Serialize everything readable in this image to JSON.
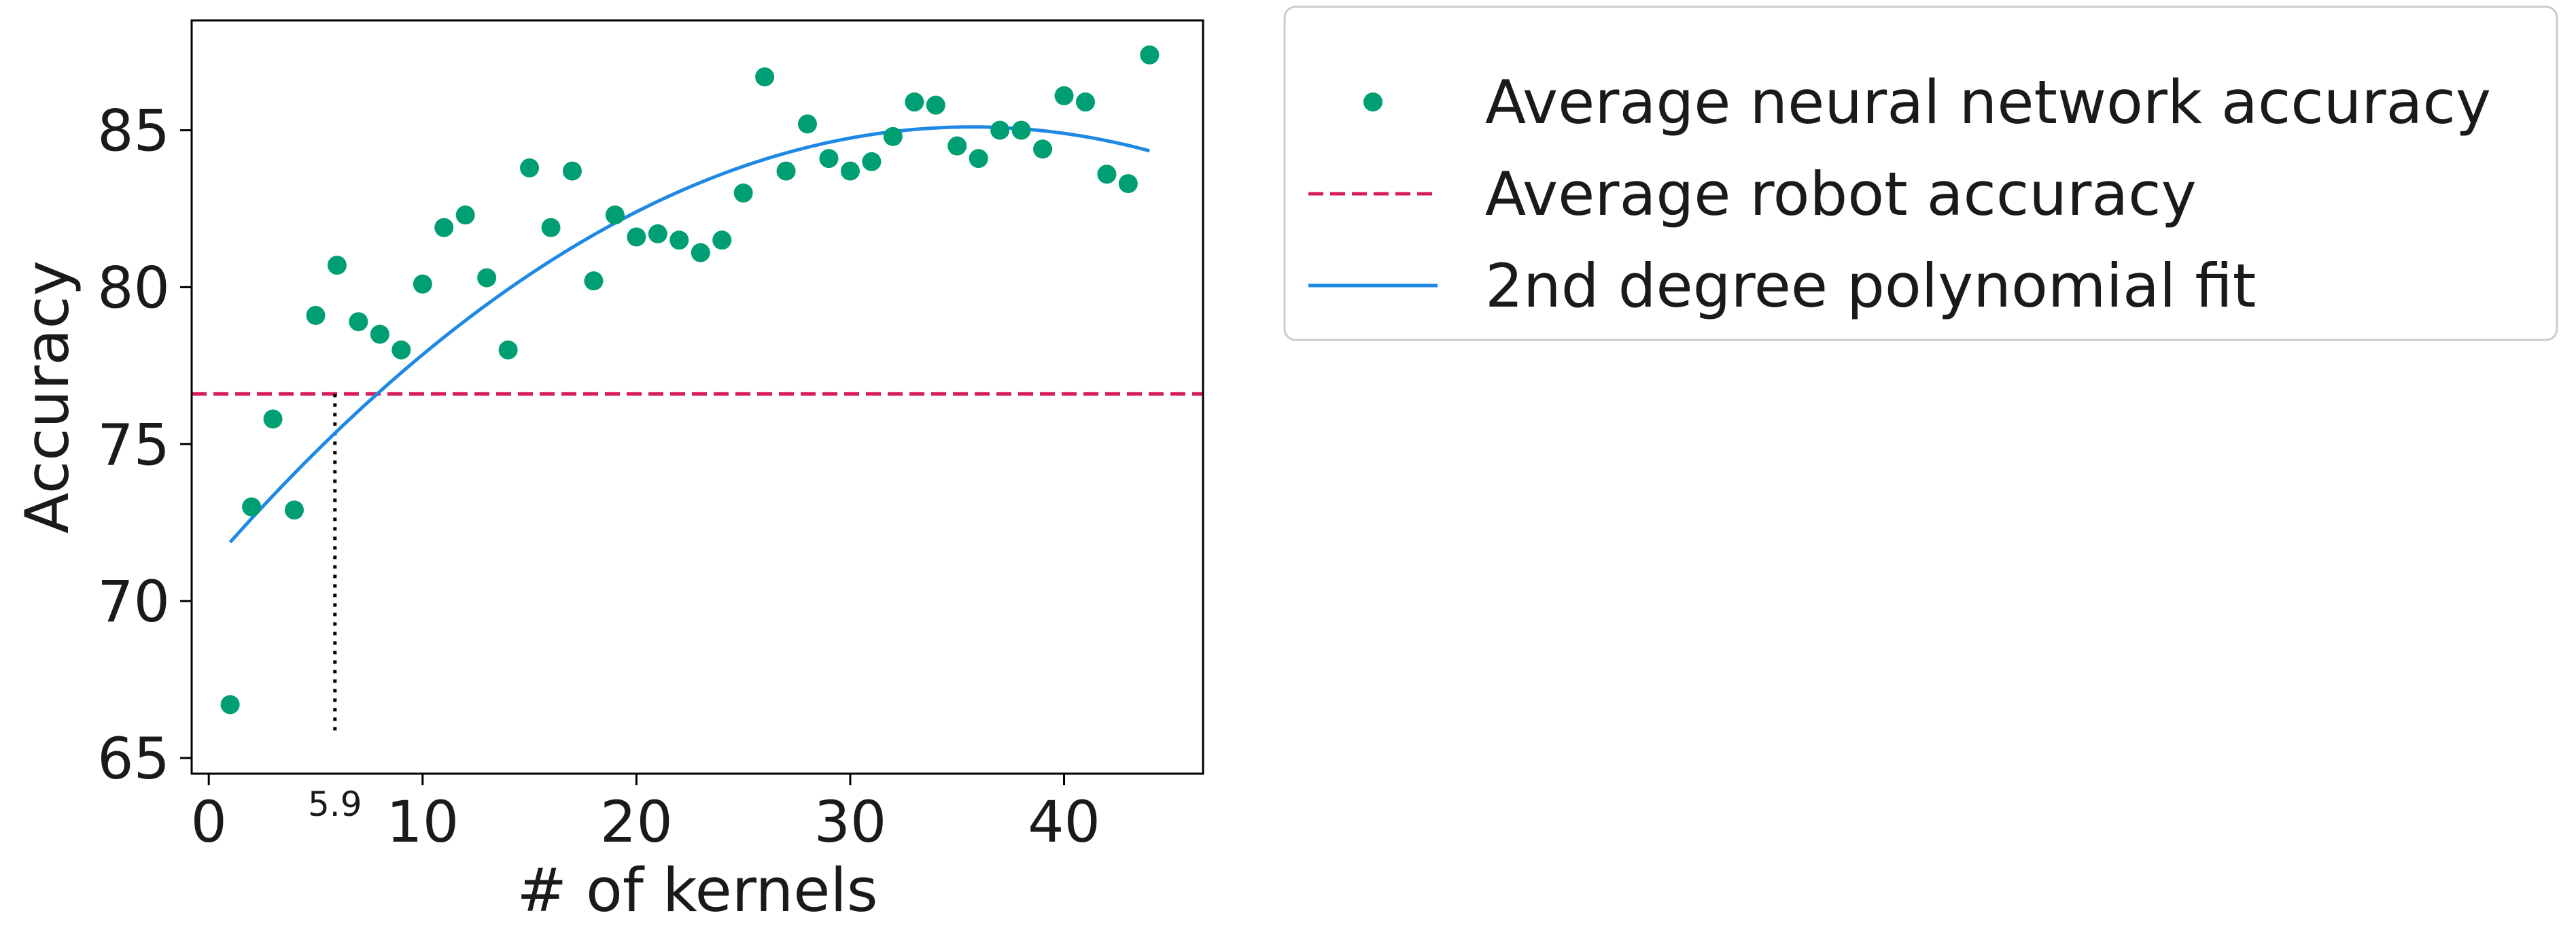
{
  "chart_data": {
    "type": "scatter",
    "xlabel": "# of kernels",
    "ylabel": "Accuracy",
    "xlim": [
      -0.8,
      46.5
    ],
    "ylim": [
      64.5,
      88.5
    ],
    "x_ticks": [
      0,
      10,
      20,
      30,
      40
    ],
    "y_ticks": [
      65,
      70,
      75,
      80,
      85
    ],
    "grid": false,
    "legend_placement": "outside-top-right",
    "series": [
      {
        "name": "Average neural network accuracy",
        "kind": "scatter",
        "color": "#009E73",
        "x": [
          1,
          2,
          3,
          4,
          5,
          6,
          7,
          8,
          9,
          10,
          11,
          12,
          13,
          14,
          15,
          16,
          17,
          18,
          19,
          20,
          21,
          22,
          23,
          24,
          25,
          26,
          27,
          28,
          29,
          30,
          31,
          32,
          33,
          34,
          35,
          36,
          37,
          38,
          39,
          40,
          41,
          42,
          43,
          44
        ],
        "y": [
          66.7,
          73.0,
          75.8,
          72.9,
          79.1,
          80.7,
          78.9,
          78.5,
          78.0,
          80.1,
          81.9,
          82.3,
          80.3,
          78.0,
          83.8,
          81.9,
          83.7,
          80.2,
          82.3,
          81.6,
          81.7,
          81.5,
          81.1,
          81.5,
          83.0,
          86.7,
          83.7,
          85.2,
          84.1,
          83.7,
          84.0,
          84.8,
          85.9,
          85.8,
          84.5,
          84.1,
          85.0,
          85.0,
          84.4,
          86.1,
          85.9,
          83.6,
          83.3,
          87.4
        ]
      },
      {
        "name": "Average robot accuracy",
        "kind": "hline",
        "color": "#D81B60",
        "y": 76.6
      },
      {
        "name": "2nd degree polynomial fit",
        "kind": "polyfit",
        "color": "#1E88E5",
        "x_range": [
          1,
          44
        ],
        "coefficients": [
          -0.011,
          0.785,
          71.1
        ]
      }
    ],
    "annotations": [
      {
        "type": "vline-dotted",
        "x": 5.9,
        "y_from": 65.7,
        "y_to": 76.6,
        "label": "5.9"
      }
    ]
  }
}
